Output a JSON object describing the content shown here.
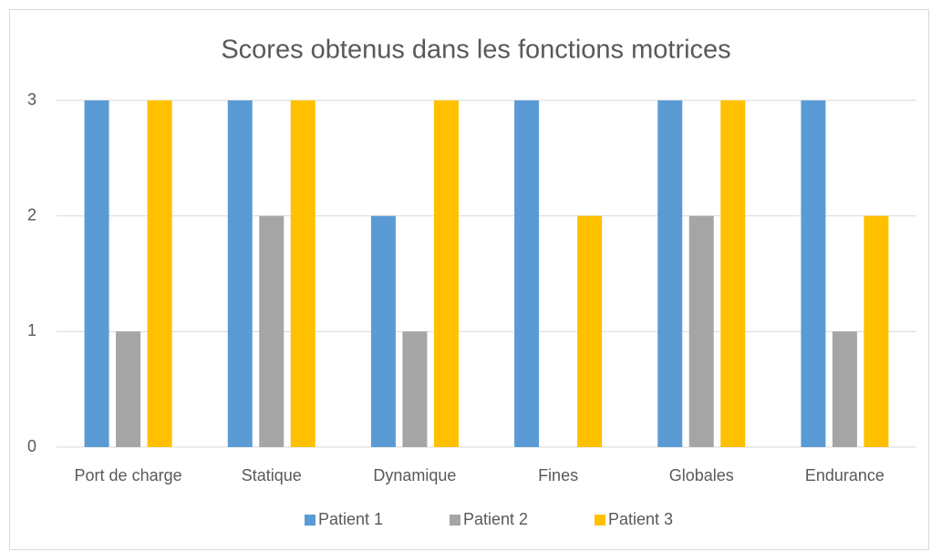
{
  "chart_data": {
    "type": "bar",
    "title": "Scores obtenus dans les fonctions motrices",
    "categories": [
      "Port de charge",
      "Statique",
      "Dynamique",
      "Fines",
      "Globales",
      "Endurance"
    ],
    "series": [
      {
        "name": "Patient 1",
        "color": "#5b9bd5",
        "values": [
          3,
          3,
          2,
          3,
          3,
          3
        ]
      },
      {
        "name": "Patient 2",
        "color": "#a5a5a5",
        "values": [
          1,
          2,
          1,
          0,
          2,
          1
        ]
      },
      {
        "name": "Patient 3",
        "color": "#ffc000",
        "values": [
          3,
          3,
          3,
          2,
          3,
          2
        ]
      }
    ],
    "ylim": [
      0,
      3
    ],
    "yticks": [
      0,
      1,
      2,
      3
    ],
    "grid": true,
    "legend": "bottom"
  }
}
